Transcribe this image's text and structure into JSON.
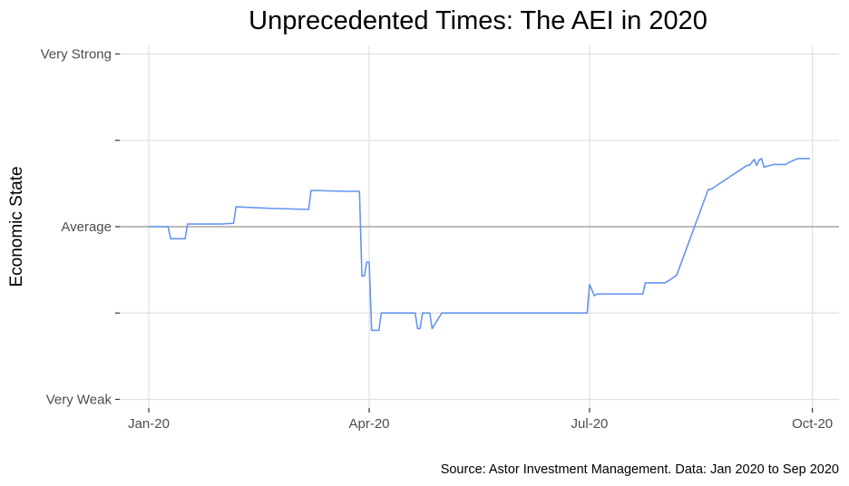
{
  "chart_data": {
    "type": "line",
    "title": "Unprecedented Times: The AEI in 2020",
    "ylabel": "Economic State",
    "xlabel": "",
    "caption": "Source: Astor Investment Management. Data: Jan 2020 to Sep 2020",
    "x_ticks": [
      {
        "date": "2020-01-01",
        "label": "Jan-20"
      },
      {
        "date": "2020-04-01",
        "label": "Apr-20"
      },
      {
        "date": "2020-07-01",
        "label": "Jul-20"
      },
      {
        "date": "2020-10-01",
        "label": "Oct-20"
      }
    ],
    "y_ticks": [
      {
        "value": -2,
        "label": "Very Weak"
      },
      {
        "value": -1,
        "label": ""
      },
      {
        "value": 0,
        "label": "Average"
      },
      {
        "value": 1,
        "label": ""
      },
      {
        "value": 2,
        "label": "Very Strong"
      }
    ],
    "xlim": [
      "2019-12-20",
      "2020-10-12"
    ],
    "ylim": [
      -2.1,
      2.1
    ],
    "reference_line": {
      "value": 0,
      "color": "#a6a6a6"
    },
    "grid": true,
    "legend": "none",
    "colors": {
      "series": "#6495ed"
    },
    "series": [
      {
        "x": [
          "2020-01-01",
          "2020-01-09",
          "2020-01-10",
          "2020-01-16",
          "2020-01-17",
          "2020-01-31",
          "2020-02-05",
          "2020-02-06",
          "2020-02-22",
          "2020-02-23",
          "2020-03-07",
          "2020-03-08",
          "2020-03-22",
          "2020-03-28",
          "2020-03-29",
          "2020-03-30",
          "2020-03-31",
          "2020-04-01",
          "2020-04-02",
          "2020-04_05",
          "2020-04-06",
          "2020-04-20",
          "2020-04-21",
          "2020-04-22",
          "2020-04-23",
          "2020-04-26",
          "2020-04-27",
          "2020-05-01",
          "2020-05-02",
          "2020-06-30",
          "2020-07-01",
          "2020-07-03",
          "2020-07-04",
          "2020-07-23",
          "2020-07-24",
          "2020-08-01",
          "2020-08-03",
          "2020-08-06",
          "2020-08-19",
          "2020-08-20",
          "2020-09-04",
          "2020-09-05",
          "2020-09-07",
          "2020-09-08",
          "2020-09-09",
          "2020-09-10",
          "2020-09-11",
          "2020-09-15",
          "2020-09-20",
          "2020-09-21",
          "2020-09-25",
          "2020-09-30"
        ],
        "values": [
          0.0,
          0.0,
          -0.14,
          -0.14,
          0.03,
          0.03,
          0.04,
          0.23,
          0.21,
          0.21,
          0.2,
          0.42,
          0.41,
          0.41,
          -0.57,
          -0.57,
          -0.41,
          -0.41,
          -1.2,
          -1.2,
          -1.0,
          -1.0,
          -1.18,
          -1.18,
          -1.0,
          -1.0,
          -1.18,
          -1.0,
          -1.0,
          -1.0,
          -0.67,
          -0.8,
          -0.78,
          -0.78,
          -0.65,
          -0.65,
          -0.62,
          -0.56,
          0.43,
          0.43,
          0.71,
          0.71,
          0.78,
          0.71,
          0.77,
          0.79,
          0.69,
          0.72,
          0.72,
          0.74,
          0.79,
          0.79
        ]
      }
    ]
  }
}
